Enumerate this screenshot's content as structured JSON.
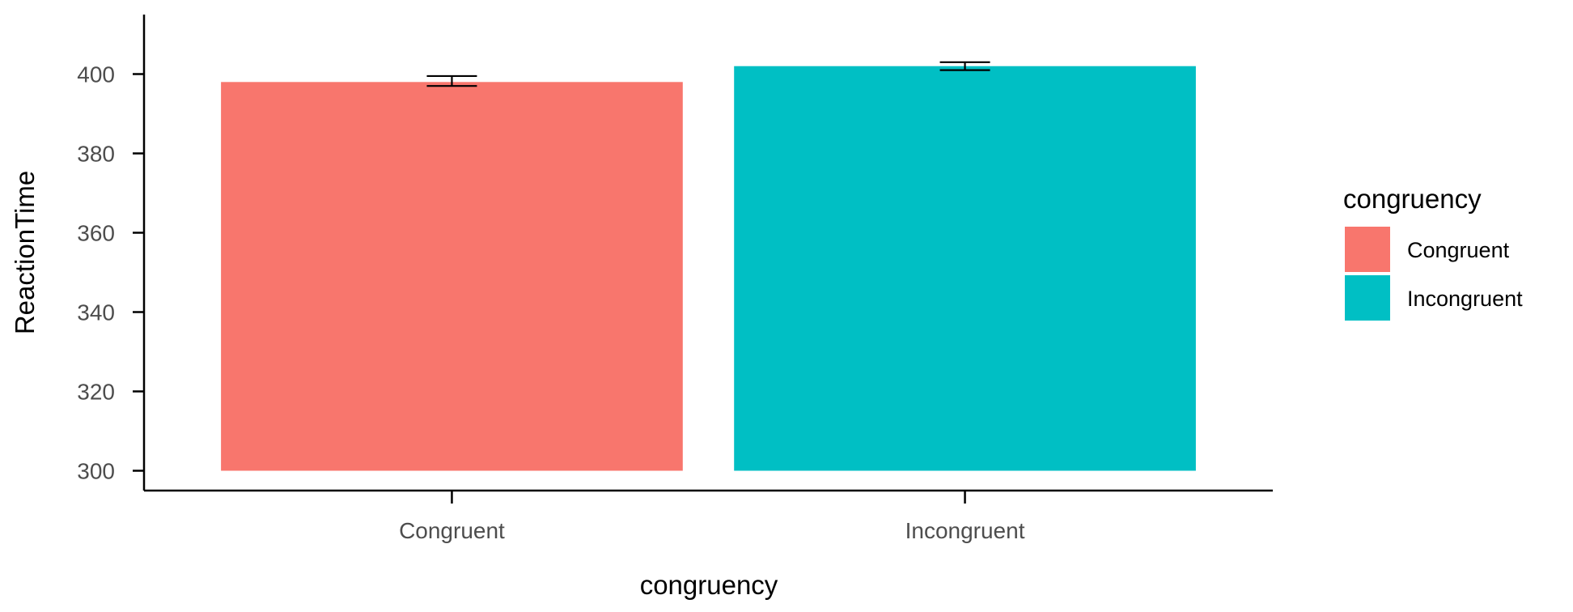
{
  "chart_data": {
    "type": "bar",
    "title": "",
    "xlabel": "congruency",
    "ylabel": "ReactionTime",
    "categories": [
      "Congruent",
      "Incongruent"
    ],
    "values": [
      398,
      402
    ],
    "error_bars": [
      {
        "lower": 397,
        "upper": 399.5
      },
      {
        "lower": 401,
        "upper": 403
      }
    ],
    "colors": [
      "#F8766D",
      "#00BFC4"
    ],
    "ylim": [
      295,
      415
    ],
    "bar_base": 300,
    "yticks": [
      300,
      320,
      340,
      360,
      380,
      400
    ],
    "ytick_labels": [
      "300",
      "320",
      "340",
      "360",
      "380",
      "400"
    ],
    "grid": false,
    "legend": {
      "title": "congruency",
      "position": "right",
      "items": [
        "Congruent",
        "Incongruent"
      ]
    }
  }
}
